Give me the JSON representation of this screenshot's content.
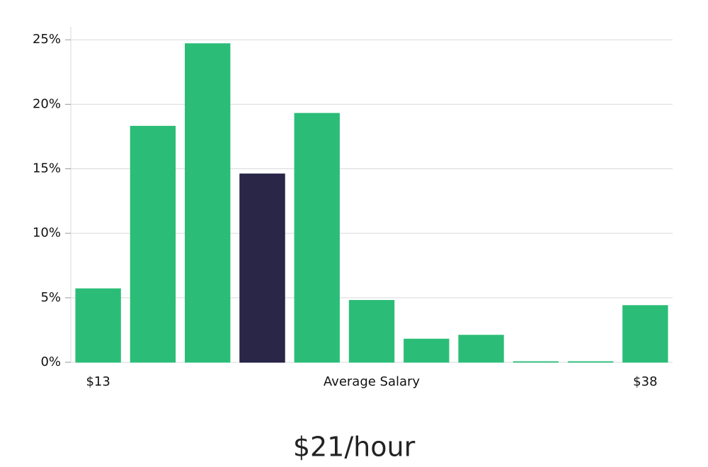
{
  "chart_data": {
    "type": "bar",
    "categories": [
      "$13",
      null,
      null,
      null,
      null,
      null,
      null,
      null,
      null,
      null,
      "$38"
    ],
    "xlabel": "Average Salary",
    "values": [
      5.7,
      18.3,
      24.7,
      14.6,
      19.3,
      4.8,
      1.8,
      2.1,
      0.05,
      0.05,
      4.4
    ],
    "colors": [
      "#2bbd77",
      "#2bbd77",
      "#2bbd77",
      "#2a2647",
      "#2bbd77",
      "#2bbd77",
      "#2bbd77",
      "#2bbd77",
      "#2bbd77",
      "#2bbd77",
      "#2bbd77"
    ],
    "ylim": [
      0,
      26
    ],
    "yticks": [
      {
        "value": 0,
        "label": "0%"
      },
      {
        "value": 5,
        "label": "5%"
      },
      {
        "value": 10,
        "label": "10%"
      },
      {
        "value": 15,
        "label": "15%"
      },
      {
        "value": 20,
        "label": "20%"
      },
      {
        "value": 25,
        "label": "25%"
      }
    ],
    "grid": true,
    "footer": "$21/hour"
  }
}
